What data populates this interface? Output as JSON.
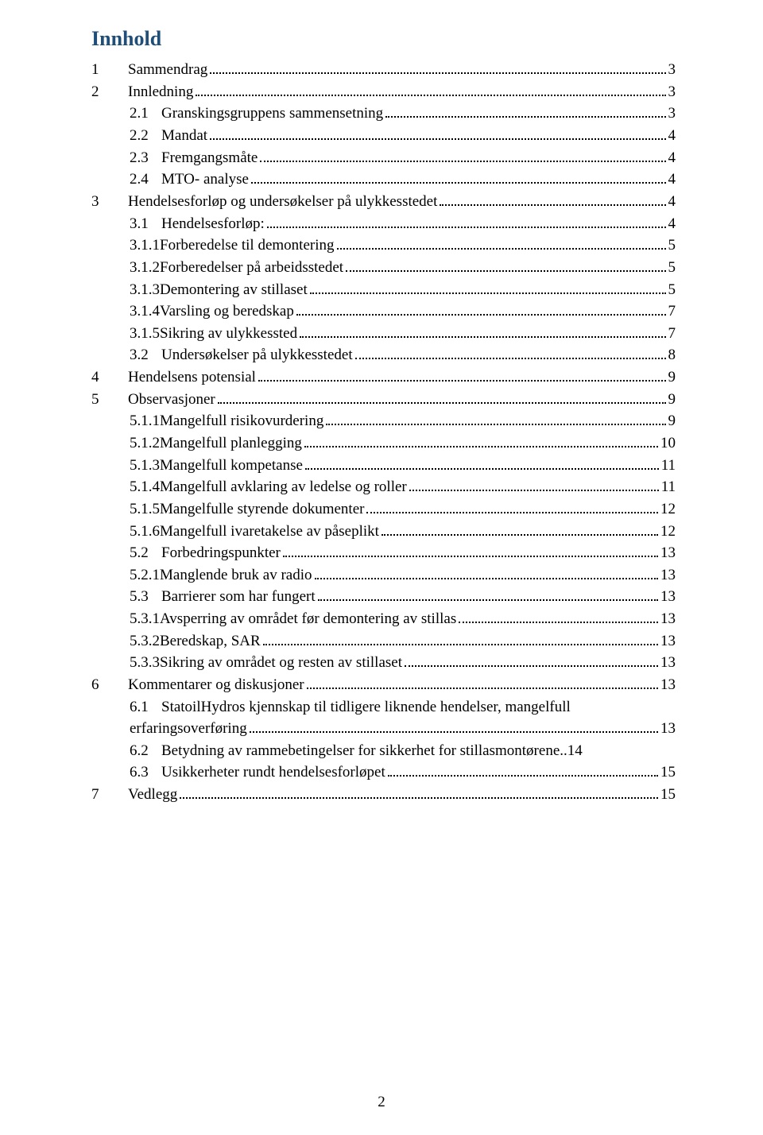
{
  "title": {
    "text": "Innhold",
    "color": "#1f4e79"
  },
  "text_color": "#000000",
  "background": "#ffffff",
  "page_number": "2",
  "entries": [
    {
      "level": 0,
      "num": "1",
      "label": "Sammendrag",
      "page": "3"
    },
    {
      "level": 0,
      "num": "2",
      "label": "Innledning",
      "page": "3"
    },
    {
      "level": 1,
      "num": "2.1",
      "label": "Granskingsgruppens sammensetning",
      "page": "3"
    },
    {
      "level": 1,
      "num": "2.2",
      "label": "Mandat",
      "page": "4"
    },
    {
      "level": 1,
      "num": "2.3",
      "label": "Fremgangsmåte",
      "page": "4"
    },
    {
      "level": 1,
      "num": "2.4",
      "label": "MTO- analyse",
      "page": "4"
    },
    {
      "level": 0,
      "num": "3",
      "label": "Hendelsesforløp og undersøkelser på ulykkesstedet",
      "page": "4"
    },
    {
      "level": 1,
      "num": "3.1",
      "label": "Hendelsesforløp:",
      "page": "4"
    },
    {
      "level": 2,
      "num": "3.1.1",
      "label": "Forberedelse til demontering",
      "page": "5"
    },
    {
      "level": 2,
      "num": "3.1.2",
      "label": "Forberedelser på arbeidsstedet",
      "page": "5"
    },
    {
      "level": 2,
      "num": "3.1.3",
      "label": "Demontering av stillaset",
      "page": "5"
    },
    {
      "level": 2,
      "num": "3.1.4",
      "label": "Varsling og beredskap",
      "page": "7"
    },
    {
      "level": 2,
      "num": "3.1.5",
      "label": "Sikring av ulykkessted",
      "page": "7"
    },
    {
      "level": 1,
      "num": "3.2",
      "label": "Undersøkelser på ulykkesstedet",
      "page": "8"
    },
    {
      "level": 0,
      "num": "4",
      "label": "Hendelsens potensial",
      "page": "9"
    },
    {
      "level": 0,
      "num": "5",
      "label": "Observasjoner",
      "page": "9"
    },
    {
      "level": 2,
      "num": "5.1.1",
      "label": "Mangelfull risikovurdering",
      "page": "9"
    },
    {
      "level": 2,
      "num": "5.1.2",
      "label": "Mangelfull planlegging",
      "page": "10"
    },
    {
      "level": 2,
      "num": "5.1.3",
      "label": "Mangelfull kompetanse",
      "page": "11"
    },
    {
      "level": 2,
      "num": "5.1.4",
      "label": "Mangelfull avklaring av ledelse og roller",
      "page": "11"
    },
    {
      "level": 2,
      "num": "5.1.5",
      "label": "Mangelfulle styrende dokumenter",
      "page": "12"
    },
    {
      "level": 2,
      "num": "5.1.6",
      "label": "Mangelfull ivaretakelse av påseplikt",
      "page": "12"
    },
    {
      "level": 1,
      "num": "5.2",
      "label": "Forbedringspunkter",
      "page": "13"
    },
    {
      "level": 2,
      "num": "5.2.1",
      "label": "Manglende bruk av radio",
      "page": "13"
    },
    {
      "level": 1,
      "num": "5.3",
      "label": "Barrierer som har fungert",
      "page": "13"
    },
    {
      "level": 2,
      "num": "5.3.1",
      "label": "Avsperring av området før demontering av stillas",
      "page": "13"
    },
    {
      "level": 2,
      "num": "5.3.2",
      "label": "Beredskap, SAR",
      "page": "13"
    },
    {
      "level": 2,
      "num": "5.3.3",
      "label": "Sikring av området og resten av stillaset",
      "page": "13"
    },
    {
      "level": 0,
      "num": "6",
      "label": "Kommentarer og diskusjoner",
      "page": "13"
    },
    {
      "level": 1,
      "num": "6.1",
      "label_lines": [
        "StatoilHydros kjennskap til tidligere liknende hendelser, mangelfull",
        "erfaringsoverføring"
      ],
      "page": "13"
    },
    {
      "level": 1,
      "num": "6.2",
      "label": "Betydning av rammebetingelser for sikkerhet for stillasmontørene",
      "page": "14",
      "sep": ".."
    },
    {
      "level": 1,
      "num": "6.3",
      "label": "Usikkerheter rundt hendelsesforløpet",
      "page": "15"
    },
    {
      "level": 0,
      "num": "7",
      "label": "Vedlegg",
      "page": "15"
    }
  ]
}
